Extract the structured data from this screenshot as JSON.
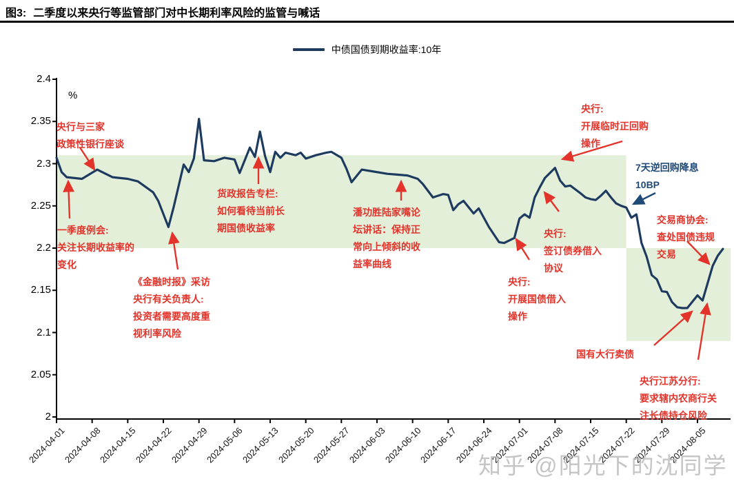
{
  "figure": {
    "label": "图3:",
    "title": "二季度以来央行等监管部门对中长期利率风险的监管与喊话"
  },
  "legend": {
    "series_label": "中债国债到期收益率:10年"
  },
  "colors": {
    "line_navy": "#1d3a5f",
    "band_green": "#e4efda",
    "annotation_red": "#e2342b",
    "annotation_blue": "#1f4a78",
    "axis_black": "#000000"
  },
  "watermark": {
    "text": "知乎 @阳光下的沈同学"
  },
  "chart_data": {
    "type": "line",
    "title": "二季度以来央行等监管部门对中长期利率风险的监管与喊话",
    "xlabel": "",
    "ylabel": "%",
    "ylim": [
      2.0,
      2.4
    ],
    "y_ticks": [
      2,
      2.05,
      2.1,
      2.15,
      2.2,
      2.25,
      2.3,
      2.35,
      2.4
    ],
    "x_ticks": [
      "2024-04-01",
      "2024-04-08",
      "2024-04-15",
      "2024-04-22",
      "2024-04-29",
      "2024-05-06",
      "2024-05-13",
      "2024-05-20",
      "2024-05-27",
      "2024-06-03",
      "2024-06-10",
      "2024-06-17",
      "2024-06-24",
      "2024-07-01",
      "2024-07-08",
      "2024-07-15",
      "2024-07-22",
      "2024-07-29",
      "2024-08-05"
    ],
    "grid": false,
    "legend_position": "top-center",
    "bands": [
      {
        "x_start": null,
        "x_end": "2024-07-22",
        "y_min": 2.2,
        "y_max": 2.31
      },
      {
        "x_start": "2024-07-22",
        "x_end": null,
        "y_min": 2.09,
        "y_max": 2.2
      }
    ],
    "series": [
      {
        "name": "中债国债到期收益率:10年",
        "points": [
          [
            "2024-04-01",
            2.307
          ],
          [
            "2024-04-02",
            2.29
          ],
          [
            "2024-04-03",
            2.284
          ],
          [
            "2024-04-06",
            2.282
          ],
          [
            "2024-04-09",
            2.293
          ],
          [
            "2024-04-12",
            2.284
          ],
          [
            "2024-04-15",
            2.282
          ],
          [
            "2024-04-17",
            2.279
          ],
          [
            "2024-04-20",
            2.266
          ],
          [
            "2024-04-21",
            2.256
          ],
          [
            "2024-04-23",
            2.225
          ],
          [
            "2024-04-24",
            2.248
          ],
          [
            "2024-04-26",
            2.299
          ],
          [
            "2024-04-27",
            2.29
          ],
          [
            "2024-04-28",
            2.306
          ],
          [
            "2024-04-29",
            2.353
          ],
          [
            "2024-04-30",
            2.304
          ],
          [
            "2024-05-02",
            2.303
          ],
          [
            "2024-05-04",
            2.307
          ],
          [
            "2024-05-06",
            2.305
          ],
          [
            "2024-05-07",
            2.289
          ],
          [
            "2024-05-09",
            2.319
          ],
          [
            "2024-05-10",
            2.308
          ],
          [
            "2024-05-11",
            2.338
          ],
          [
            "2024-05-12",
            2.309
          ],
          [
            "2024-05-13",
            2.29
          ],
          [
            "2024-05-14",
            2.314
          ],
          [
            "2024-05-15",
            2.307
          ],
          [
            "2024-05-16",
            2.313
          ],
          [
            "2024-05-18",
            2.31
          ],
          [
            "2024-05-19",
            2.313
          ],
          [
            "2024-05-20",
            2.306
          ],
          [
            "2024-05-22",
            2.31
          ],
          [
            "2024-05-24",
            2.313
          ],
          [
            "2024-05-25",
            2.314
          ],
          [
            "2024-05-27",
            2.307
          ],
          [
            "2024-05-28",
            2.294
          ],
          [
            "2024-05-29",
            2.278
          ],
          [
            "2024-05-31",
            2.293
          ],
          [
            "2024-06-02",
            2.291
          ],
          [
            "2024-06-05",
            2.288
          ],
          [
            "2024-06-07",
            2.287
          ],
          [
            "2024-06-09",
            2.286
          ],
          [
            "2024-06-11",
            2.282
          ],
          [
            "2024-06-12",
            2.276
          ],
          [
            "2024-06-14",
            2.26
          ],
          [
            "2024-06-15",
            2.262
          ],
          [
            "2024-06-16",
            2.264
          ],
          [
            "2024-06-17",
            2.263
          ],
          [
            "2024-06-18",
            2.245
          ],
          [
            "2024-06-19",
            2.252
          ],
          [
            "2024-06-20",
            2.256
          ],
          [
            "2024-06-22",
            2.241
          ],
          [
            "2024-06-23",
            2.247
          ],
          [
            "2024-06-25",
            2.225
          ],
          [
            "2024-06-27",
            2.207
          ],
          [
            "2024-06-28",
            2.206
          ],
          [
            "2024-06-30",
            2.212
          ],
          [
            "2024-07-01",
            2.235
          ],
          [
            "2024-07-02",
            2.24
          ],
          [
            "2024-07-03",
            2.236
          ],
          [
            "2024-07-04",
            2.26
          ],
          [
            "2024-07-05",
            2.272
          ],
          [
            "2024-07-06",
            2.283
          ],
          [
            "2024-07-08",
            2.295
          ],
          [
            "2024-07-09",
            2.28
          ],
          [
            "2024-07-10",
            2.273
          ],
          [
            "2024-07-11",
            2.274
          ],
          [
            "2024-07-13",
            2.265
          ],
          [
            "2024-07-14",
            2.26
          ],
          [
            "2024-07-15",
            2.258
          ],
          [
            "2024-07-16",
            2.257
          ],
          [
            "2024-07-17",
            2.262
          ],
          [
            "2024-07-18",
            2.268
          ],
          [
            "2024-07-19",
            2.26
          ],
          [
            "2024-07-20",
            2.253
          ],
          [
            "2024-07-21",
            2.25
          ],
          [
            "2024-07-22",
            2.248
          ],
          [
            "2024-07-23",
            2.236
          ],
          [
            "2024-07-24",
            2.24
          ],
          [
            "2024-07-25",
            2.206
          ],
          [
            "2024-07-26",
            2.19
          ],
          [
            "2024-07-27",
            2.168
          ],
          [
            "2024-07-28",
            2.163
          ],
          [
            "2024-07-29",
            2.149
          ],
          [
            "2024-07-30",
            2.148
          ],
          [
            "2024-07-31",
            2.136
          ],
          [
            "2024-08-01",
            2.13
          ],
          [
            "2024-08-02",
            2.129
          ],
          [
            "2024-08-03",
            2.129
          ],
          [
            "2024-08-05",
            2.144
          ],
          [
            "2024-08-06",
            2.138
          ],
          [
            "2024-08-08",
            2.179
          ],
          [
            "2024-08-09",
            2.191
          ],
          [
            "2024-08-10",
            2.199
          ]
        ]
      }
    ]
  },
  "annotations": [
    {
      "id": "pboc-policy-bank-meeting",
      "color": "red",
      "lines": [
        "央行与三家",
        "政策性银行座谈"
      ]
    },
    {
      "id": "q1-mpc-meeting",
      "color": "red",
      "lines": [
        "一季度例会:",
        "关注长期收益率的",
        "变化"
      ]
    },
    {
      "id": "financial-times-interview",
      "color": "red",
      "lines": [
        "《金融时报》采访",
        "央行有关负责人:",
        "投资者需要高度重",
        "视利率风险"
      ]
    },
    {
      "id": "mpr-column",
      "color": "red",
      "lines": [
        "货政报告专栏:",
        "如何看待当前长",
        "期国债收益率"
      ]
    },
    {
      "id": "pan-lujiazui-speech",
      "color": "red",
      "lines": [
        "潘功胜陆家嘴论",
        "坛讲话：保持正",
        "常向上倾斜的收",
        "益率曲线"
      ]
    },
    {
      "id": "temp-repo-operation",
      "color": "red",
      "lines": [
        "央行:",
        "开展临时正回购",
        "操作"
      ]
    },
    {
      "id": "omo-rate-cut",
      "color": "blue",
      "lines": [
        "7天逆回购降息",
        "10BP"
      ]
    },
    {
      "id": "bond-borrowing-agreement",
      "color": "red",
      "lines": [
        "央行:",
        "签订债券借入",
        "协议"
      ]
    },
    {
      "id": "bond-borrowing-operation",
      "color": "red",
      "lines": [
        "央行:",
        "开展国债借入",
        "操作"
      ]
    },
    {
      "id": "nafmii-investigation",
      "color": "red",
      "lines": [
        "交易商协会:",
        "查处国债违规",
        "交易"
      ]
    },
    {
      "id": "big-banks-selling",
      "color": "red",
      "lines": [
        "国有大行卖债"
      ]
    },
    {
      "id": "jiangsu-branch-warning",
      "color": "red",
      "lines": [
        "央行江苏分行:",
        "要求辖内农商行关",
        "注长债持仓风险"
      ]
    }
  ]
}
